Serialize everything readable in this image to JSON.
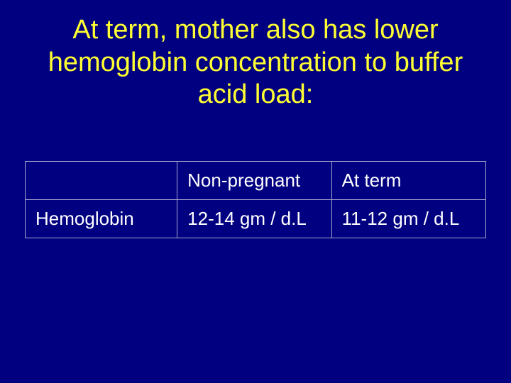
{
  "slide": {
    "title": "At term, mother also has lower hemoglobin concentration to buffer acid load:",
    "background_color": "#000080",
    "title_color": "#ffff33",
    "title_fontsize": 38,
    "text_color": "#ffffff",
    "border_color": "#a8a8d0"
  },
  "table": {
    "type": "table",
    "columns": [
      "",
      "Non-pregnant",
      "At term"
    ],
    "rows": [
      [
        "Hemoglobin",
        "12-14 gm / d.L",
        "11-12 gm / d.L"
      ]
    ],
    "cell_fontsize": 26,
    "column_widths": [
      "33%",
      "33.5%",
      "33.5%"
    ]
  }
}
